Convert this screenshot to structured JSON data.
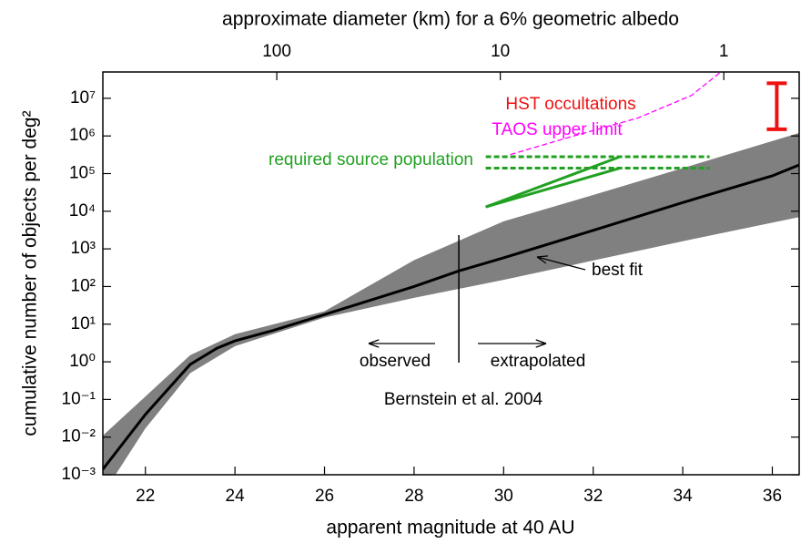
{
  "chart_data": {
    "type": "line",
    "x_label": "apparent magnitude at 40 AU",
    "x2_label": "approximate diameter (km) for a 6% geometric albedo",
    "y_label": "cumulative number of objects per deg²",
    "log_y": true,
    "xlim": [
      21.05,
      36.6
    ],
    "xticks": [
      22,
      24,
      26,
      28,
      30,
      32,
      34,
      36
    ],
    "x2lim": [
      600,
      0.46
    ],
    "x2ticks": [
      100,
      10,
      1
    ],
    "ylim": [
      0.001,
      50000000
    ],
    "yticks": [
      {
        "value": 0.001,
        "label": "10⁻³"
      },
      {
        "value": 0.01,
        "label": "10⁻²"
      },
      {
        "value": 0.1,
        "label": "10⁻¹"
      },
      {
        "value": 1,
        "label": "10⁰"
      },
      {
        "value": 10,
        "label": "10¹"
      },
      {
        "value": 100,
        "label": "10²"
      },
      {
        "value": 1000,
        "label": "10³"
      },
      {
        "value": 10000,
        "label": "10⁴"
      },
      {
        "value": 100000,
        "label": "10⁵"
      },
      {
        "value": 1000000,
        "label": "10⁶"
      },
      {
        "value": 10000000,
        "label": "10⁷"
      }
    ],
    "band": {
      "color": "#808080",
      "x": [
        21.05,
        22,
        23,
        24,
        26,
        28,
        30,
        32,
        34,
        36.6
      ],
      "upper": [
        0.011,
        0.12,
        1.5,
        5.4,
        22,
        500,
        5400,
        27000,
        140000,
        1200000
      ],
      "lower": [
        0.0003,
        0.017,
        0.5,
        2.6,
        15,
        50,
        150,
        490,
        1600,
        7000
      ]
    },
    "series": [
      {
        "name": "best fit",
        "color": "#000000",
        "x": [
          21.05,
          22,
          23,
          23.6,
          24,
          24.85,
          26,
          28,
          29,
          30,
          32,
          34,
          36,
          36.6
        ],
        "values": [
          0.0014,
          0.04,
          0.85,
          2.3,
          3.6,
          6.8,
          18,
          100,
          260,
          580,
          3100,
          17000,
          87000,
          170000
        ]
      },
      {
        "name": "required source population",
        "color": "#22a022",
        "lines": [
          {
            "x": [
              29.6,
              34.6
            ],
            "values": [
              280000,
              280000
            ],
            "dash": true
          },
          {
            "x": [
              29.6,
              34.6
            ],
            "values": [
              140000,
              140000
            ],
            "dash": true
          },
          {
            "x": [
              29.6,
              32.6
            ],
            "values": [
              13000,
              280000
            ]
          },
          {
            "x": [
              29.6,
              32.6
            ],
            "values": [
              13000,
              140000
            ]
          }
        ]
      },
      {
        "name": "TAOS upper limit",
        "color": "#ff00ff",
        "dash": true,
        "x": [
          30.15,
          31.5,
          33.0,
          34.2,
          34.85
        ],
        "values": [
          320000,
          950000,
          3000000,
          12000000,
          50000000
        ]
      },
      {
        "name": "HST occultations",
        "color": "#ee1111",
        "errorbar": true,
        "x": 36.1,
        "low": 1500000,
        "high": 25000000
      }
    ],
    "split_x": 29,
    "annotations": [
      "observed",
      "extrapolated",
      "Bernstein et al. 2004"
    ]
  }
}
